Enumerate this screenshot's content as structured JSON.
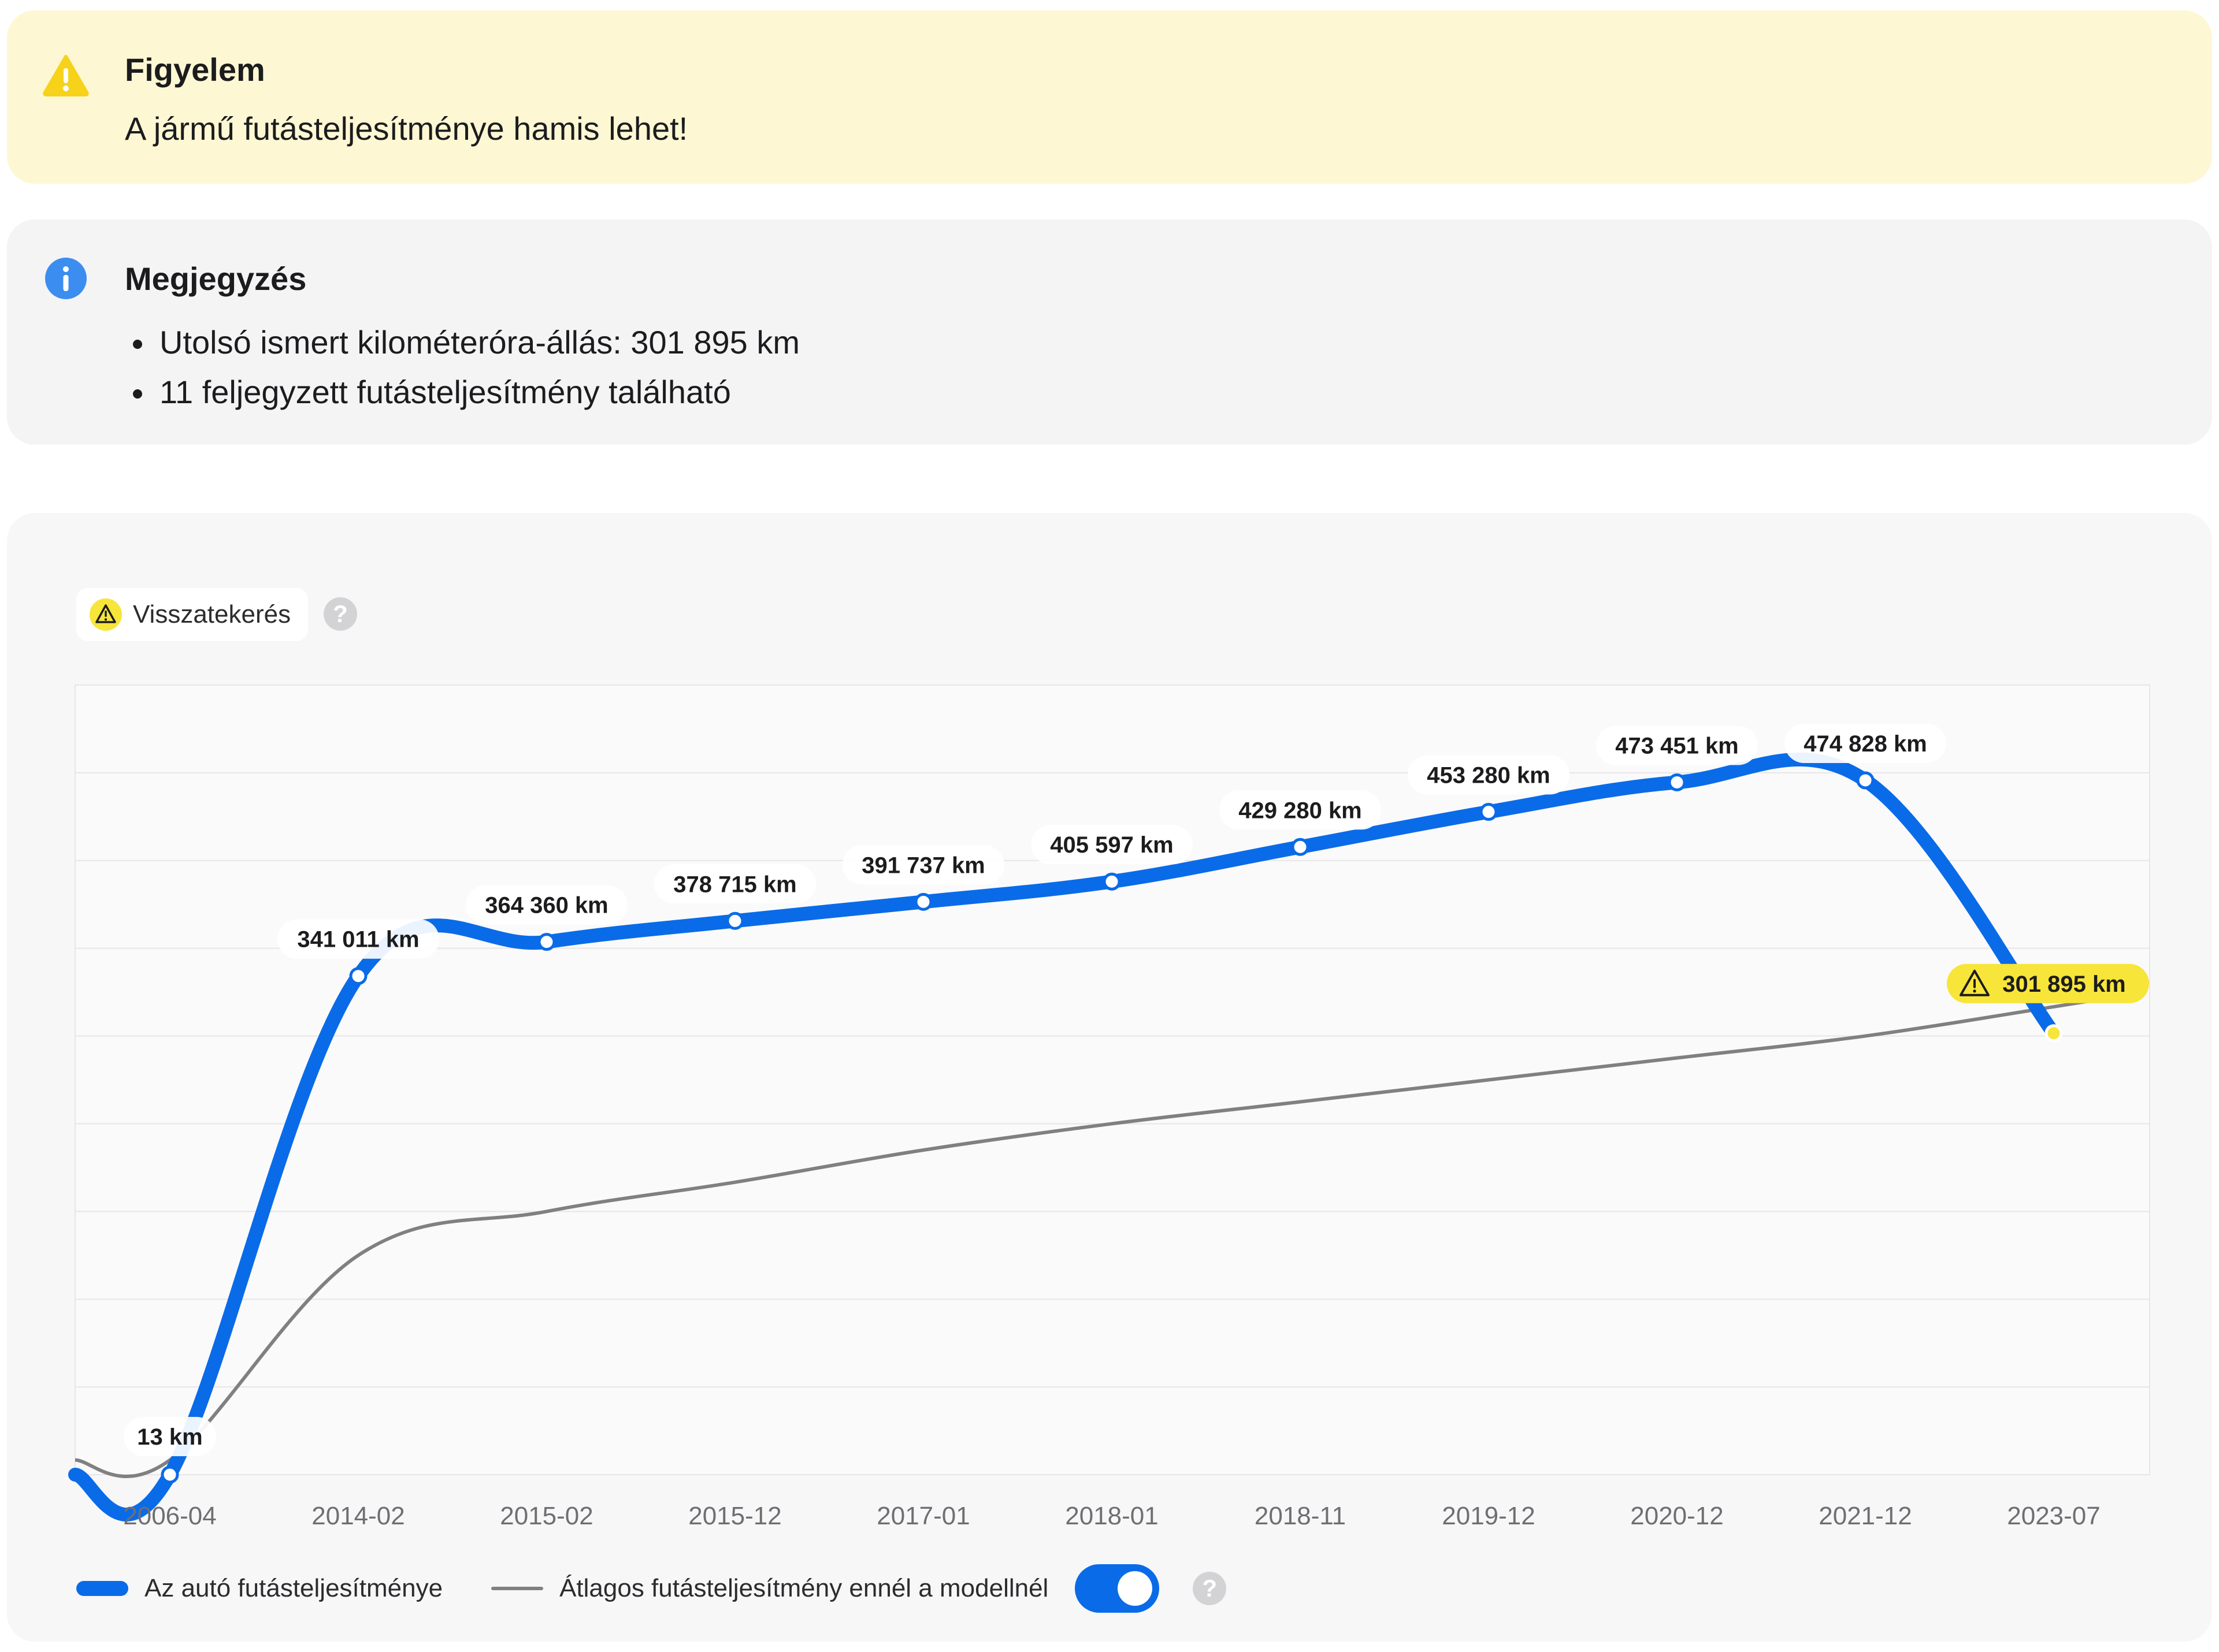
{
  "warning": {
    "icon": "warning-triangle-icon",
    "title": "Figyelem",
    "text": "A jármű futásteljesítménye hamis lehet!",
    "color": "#f7d21b"
  },
  "note": {
    "icon": "info-icon",
    "title": "Megjegyzés",
    "items": [
      "Utolsó ismert kilométeróra-állás: 301 895 km",
      "11 feljegyzett futásteljesítmény található"
    ],
    "color": "#3b8ef0"
  },
  "rollback_badge": {
    "icon": "warning-triangle-icon",
    "label": "Visszatekerés",
    "help": "?"
  },
  "legend": {
    "car_label": "Az autó futásteljesítménye",
    "avg_label": "Átlagos futásteljesítmény ennél a modellnél",
    "toggle_on": true,
    "help": "?"
  },
  "colors": {
    "car_line": "#0a6be8",
    "avg_line": "#808080",
    "rollback": "#f7e53a",
    "grid": "#e6e6e8"
  },
  "chart_data": {
    "type": "line",
    "title": "",
    "xlabel": "",
    "ylabel": "",
    "ylim": [
      0,
      540000
    ],
    "grid": true,
    "categories": [
      "2006-04",
      "2014-02",
      "2015-02",
      "2015-12",
      "2017-01",
      "2018-01",
      "2018-11",
      "2019-12",
      "2020-12",
      "2021-12",
      "2023-07"
    ],
    "series": [
      {
        "name": "Az autó futásteljesítménye",
        "values": [
          13,
          341011,
          364360,
          378715,
          391737,
          405597,
          429280,
          453280,
          473451,
          474828,
          301895
        ],
        "labels": [
          "13 km",
          "341 011 km",
          "364 360 km",
          "378 715 km",
          "391 737 km",
          "405 597 km",
          "429 280 km",
          "453 280 km",
          "473 451 km",
          "474 828 km",
          "301 895 km"
        ],
        "flagged_index": 10
      },
      {
        "name": "Átlagos futásteljesítmény ennél a modellnél",
        "values": [
          10000,
          150000,
          180000,
          200000,
          222000,
          240000,
          255000,
          270000,
          285000,
          300000,
          320000
        ]
      }
    ]
  }
}
